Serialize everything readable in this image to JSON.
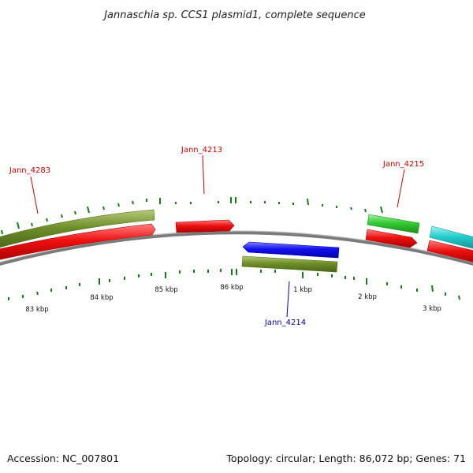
{
  "header": {
    "title": "Jannaschia sp. CCS1 plasmid1, complete sequence"
  },
  "footer": {
    "accession": "Accession: NC_007801",
    "summary": "Topology: circular; Length: 86,072 bp; Genes: 71"
  },
  "colors": {
    "backbone": "#808080",
    "forward_cds": "#ee1111",
    "reverse_cds": "#1111ee",
    "gene_olive": "#6f8f2a",
    "gene_green": "#33cc33",
    "gene_cyan": "#22cccc",
    "tick": "#1a7a1a",
    "label_forward": "#cc0000",
    "label_reverse": "#000099"
  },
  "scale_labels": [
    {
      "text": "83 kbp"
    },
    {
      "text": "84 kbp"
    },
    {
      "text": "85 kbp"
    },
    {
      "text": "86 kbp"
    },
    {
      "text": "1 kbp"
    },
    {
      "text": "2 kbp"
    },
    {
      "text": "3 kbp"
    }
  ],
  "gene_labels": [
    {
      "text": "Jann_4283",
      "strand": "forward"
    },
    {
      "text": "Jann_4213",
      "strand": "forward"
    },
    {
      "text": "Jann_4215",
      "strand": "forward"
    },
    {
      "text": "Jann_4214",
      "strand": "reverse"
    }
  ]
}
